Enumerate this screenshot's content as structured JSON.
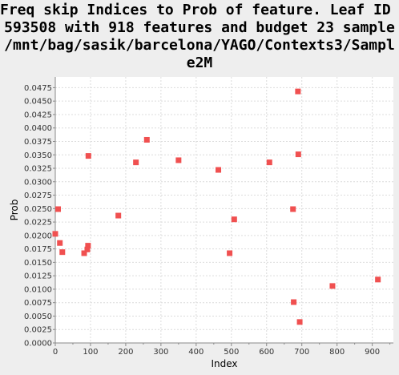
{
  "title_lines": [
    "Freq skip Indices to Prob of feature. Leaf ID -",
    "593508 with 918 features and budget 23 sample",
    "/mnt/bag/sasik/barcelona/YAGO/Contexts3/Sampl",
    "e2M"
  ],
  "chart_data": {
    "type": "scatter",
    "title": "Freq skip Indices to Prob of feature. Leaf ID - 593508 with 918 features and budget 23 sample /mnt/bag/sasik/barcelona/YAGO/Contexts3/Sample2M",
    "xlabel": "Index",
    "ylabel": "Prob",
    "xlim": [
      0,
      960
    ],
    "ylim": [
      0,
      0.0495
    ],
    "grid": true,
    "marker": "square",
    "colors": {
      "marker": "#f05050",
      "plot_bg": "#ffffff",
      "grid": "#dcdcdc",
      "page_bg": "#eeeeee"
    },
    "x_ticks": [
      "0",
      "100",
      "200",
      "300",
      "400",
      "500",
      "600",
      "700",
      "800",
      "900"
    ],
    "x_tick_values": [
      0,
      100,
      200,
      300,
      400,
      500,
      600,
      700,
      800,
      900
    ],
    "y_ticks": [
      "0.0000",
      "0.0025",
      "0.0050",
      "0.0075",
      "0.0100",
      "0.0125",
      "0.0150",
      "0.0175",
      "0.0200",
      "0.0225",
      "0.0250",
      "0.0275",
      "0.0300",
      "0.0325",
      "0.0350",
      "0.0375",
      "0.0400",
      "0.0425",
      "0.0450",
      "0.0475"
    ],
    "y_tick_values": [
      0,
      0.0025,
      0.005,
      0.0075,
      0.01,
      0.0125,
      0.015,
      0.0175,
      0.02,
      0.0225,
      0.025,
      0.0275,
      0.03,
      0.0325,
      0.035,
      0.0375,
      0.04,
      0.0425,
      0.045,
      0.0475
    ],
    "points": [
      {
        "x": 0,
        "y": 0.0203
      },
      {
        "x": 8,
        "y": 0.0249
      },
      {
        "x": 13,
        "y": 0.0186
      },
      {
        "x": 20,
        "y": 0.0169
      },
      {
        "x": 82,
        "y": 0.0167
      },
      {
        "x": 91,
        "y": 0.0174
      },
      {
        "x": 93,
        "y": 0.0181
      },
      {
        "x": 94,
        "y": 0.0348
      },
      {
        "x": 179,
        "y": 0.0237
      },
      {
        "x": 229,
        "y": 0.0336
      },
      {
        "x": 260,
        "y": 0.0378
      },
      {
        "x": 350,
        "y": 0.034
      },
      {
        "x": 463,
        "y": 0.0322
      },
      {
        "x": 495,
        "y": 0.0167
      },
      {
        "x": 508,
        "y": 0.023
      },
      {
        "x": 608,
        "y": 0.0336
      },
      {
        "x": 675,
        "y": 0.0249
      },
      {
        "x": 677,
        "y": 0.0076
      },
      {
        "x": 689,
        "y": 0.0468
      },
      {
        "x": 690,
        "y": 0.0351
      },
      {
        "x": 694,
        "y": 0.0039
      },
      {
        "x": 787,
        "y": 0.0106
      },
      {
        "x": 916,
        "y": 0.0118
      }
    ]
  }
}
